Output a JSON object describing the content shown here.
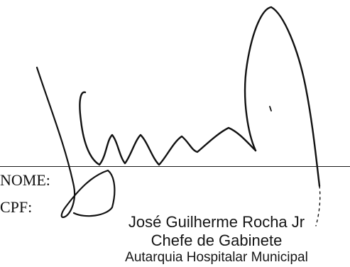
{
  "form": {
    "nome_label": "NOME:",
    "cpf_label": "CPF:"
  },
  "stamp": {
    "name": "José Guilherme Rocha Jr",
    "role": "Chefe de Gabinete",
    "organization": "Autarquia Hospitalar Municipal"
  },
  "colors": {
    "ink": "#111111",
    "paper": "#ffffff"
  }
}
